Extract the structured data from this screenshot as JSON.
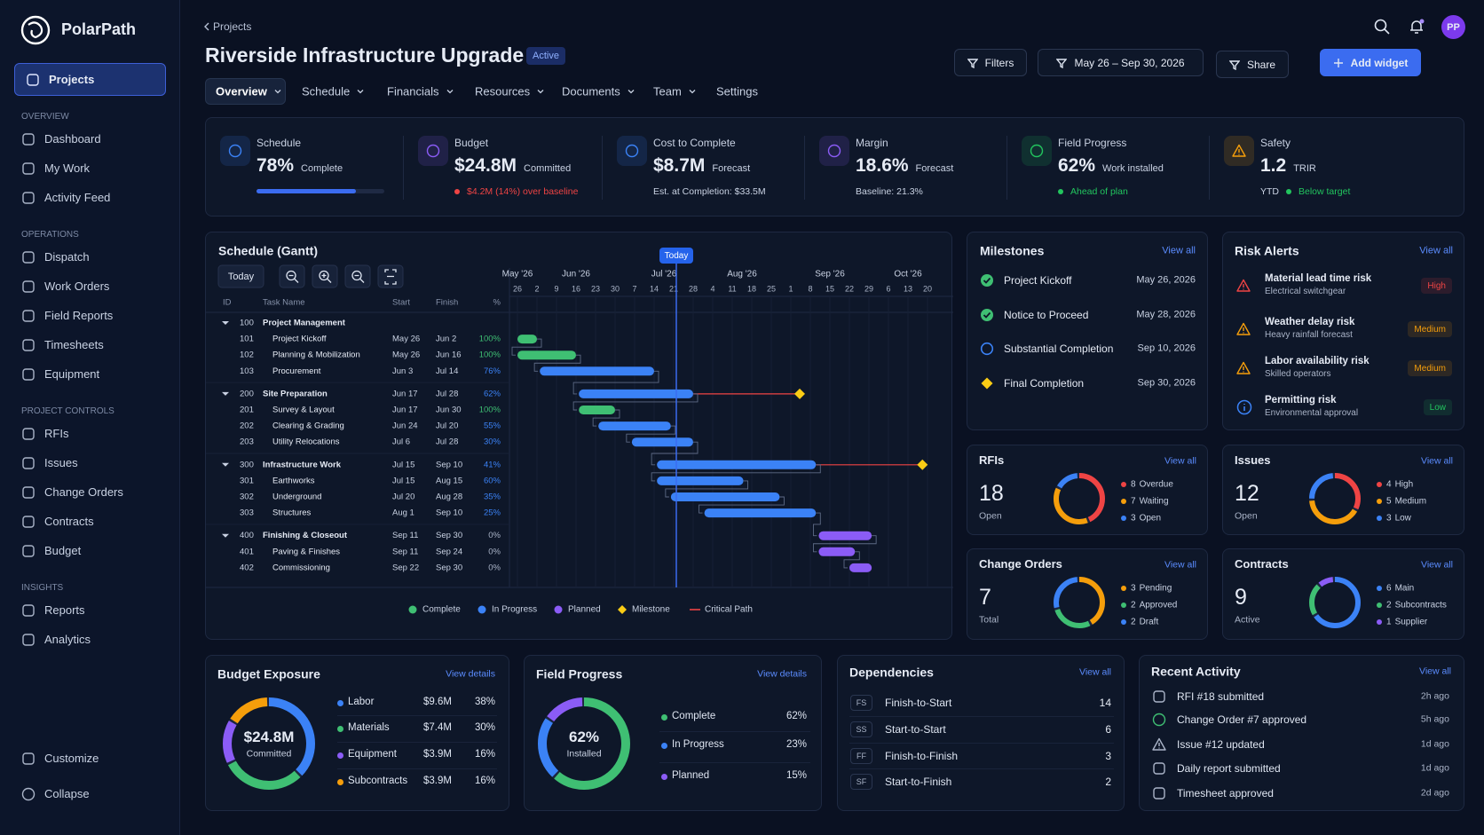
{
  "sidebar": {
    "brand": "PolarPath",
    "active": "Projects",
    "sections": [
      {
        "title": "OVERVIEW",
        "items": [
          "Dashboard",
          "My Work",
          "Activity Feed"
        ]
      },
      {
        "title": "OPERATIONS",
        "items": [
          "Dispatch",
          "Work Orders",
          "Field Reports",
          "Timesheets",
          "Equipment"
        ]
      },
      {
        "title": "PROJECT CONTROLS",
        "items": [
          "RFIs",
          "Issues",
          "Change Orders",
          "Contracts",
          "Budget"
        ]
      },
      {
        "title": "INSIGHTS",
        "items": [
          "Reports",
          "Analytics"
        ]
      }
    ],
    "footer": [
      "Customize",
      "Collapse"
    ]
  },
  "header": {
    "breadcrumb": "Projects",
    "title": "Riverside Infrastructure Upgrade",
    "status": "Active",
    "tabs": [
      "Overview",
      "Schedule",
      "Financials",
      "Resources",
      "Documents",
      "Team",
      "Settings"
    ],
    "filters": "Filters",
    "date_range": "May 26 – Sep 30, 2026",
    "share": "Share",
    "add_widget": "Add widget",
    "avatar": "PP"
  },
  "kpis": [
    {
      "label": "Schedule",
      "value": {
        "value": 78,
        "label": "78%"
      },
      "unit": "Complete"
    },
    {
      "label": "Budget",
      "value": "$24.8M",
      "unit": "Committed",
      "note": "$4.2M (14%) over baseline",
      "note_color": "#ef4444"
    },
    {
      "label": "Cost to Complete",
      "value": "$8.7M",
      "unit": "Forecast",
      "note": "Est. at Completion: $33.5M"
    },
    {
      "label": "Margin",
      "value": "18.6%",
      "unit": "Forecast",
      "note": "Baseline: 21.3%"
    },
    {
      "label": "Field Progress",
      "value": "62%",
      "unit": "Work installed",
      "note": "Ahead of plan",
      "note_color": "#22c55e"
    },
    {
      "label": "Safety",
      "value": "1.2",
      "unit": "TRIR",
      "note_prefix": "YTD",
      "note": "Below target",
      "note_color": "#22c55e"
    }
  ],
  "gantt": {
    "title": "Schedule (Gantt)",
    "today_button": "Today",
    "today_marker": "Today",
    "columns": [
      "ID",
      "Task Name",
      "Start",
      "Finish",
      "%"
    ],
    "months": [
      "May '26",
      "Jun '26",
      "Jul '26",
      "Aug '26",
      "Sep '26",
      "Oct '26"
    ],
    "weeks": [
      26,
      2,
      9,
      16,
      23,
      30,
      7,
      14,
      21,
      28,
      4,
      11,
      18,
      25,
      1,
      8,
      15,
      22,
      29,
      6,
      13,
      20
    ],
    "rows": [
      {
        "id": "100",
        "name": "Project Management",
        "start": null,
        "finish": null,
        "pct": null
      },
      {
        "id": "101",
        "name": "Project Kickoff",
        "start": "May 26",
        "finish": "Jun 2",
        "pct": {
          "value": 100,
          "label": "100%"
        }
      },
      {
        "id": "102",
        "name": "Planning & Mobilization",
        "start": "May 26",
        "finish": "Jun 16",
        "pct": {
          "value": 100,
          "label": "100%"
        }
      },
      {
        "id": "103",
        "name": "Procurement",
        "start": "Jun 3",
        "finish": "Jul 14",
        "pct": {
          "value": 76,
          "label": "76%"
        }
      },
      {
        "id": "200",
        "name": "Site Preparation",
        "start": "Jun 17",
        "finish": "Jul 28",
        "pct": {
          "value": 62,
          "label": "62%"
        }
      },
      {
        "id": "201",
        "name": "Survey & Layout",
        "start": "Jun 17",
        "finish": "Jun 30",
        "pct": {
          "value": 100,
          "label": "100%"
        }
      },
      {
        "id": "202",
        "name": "Clearing & Grading",
        "start": "Jun 24",
        "finish": "Jul 20",
        "pct": {
          "value": 55,
          "label": "55%"
        }
      },
      {
        "id": "203",
        "name": "Utility Relocations",
        "start": "Jul 6",
        "finish": "Jul 28",
        "pct": {
          "value": 30,
          "label": "30%"
        }
      },
      {
        "id": "300",
        "name": "Infrastructure Work",
        "start": "Jul 15",
        "finish": "Sep 10",
        "pct": {
          "value": 41,
          "label": "41%"
        }
      },
      {
        "id": "301",
        "name": "Earthworks",
        "start": "Jul 15",
        "finish": "Aug 15",
        "pct": {
          "value": 60,
          "label": "60%"
        }
      },
      {
        "id": "302",
        "name": "Underground",
        "start": "Jul 20",
        "finish": "Aug 28",
        "pct": {
          "value": 35,
          "label": "35%"
        }
      },
      {
        "id": "303",
        "name": "Structures",
        "start": "Aug 1",
        "finish": "Sep 10",
        "pct": {
          "value": 25,
          "label": "25%"
        }
      },
      {
        "id": "400",
        "name": "Finishing & Closeout",
        "start": "Sep 11",
        "finish": "Sep 30",
        "pct": {
          "value": 0,
          "label": "0%"
        }
      },
      {
        "id": "401",
        "name": "Paving & Finishes",
        "start": "Sep 11",
        "finish": "Sep 24",
        "pct": {
          "value": 0,
          "label": "0%"
        }
      },
      {
        "id": "402",
        "name": "Commissioning",
        "start": "Sep 22",
        "finish": "Sep 30",
        "pct": {
          "value": 0,
          "label": "0%"
        }
      }
    ],
    "legend": [
      {
        "name": "Complete",
        "color": "#3fbf73"
      },
      {
        "name": "In Progress",
        "color": "#3b82f6"
      },
      {
        "name": "Planned",
        "color": "#8b5cf6"
      },
      {
        "name": "Milestone",
        "color": "#facc15"
      },
      {
        "name": "Critical Path",
        "color": "#ef4444"
      }
    ]
  },
  "milestones": {
    "title": "Milestones",
    "view_all": "View all",
    "items": [
      {
        "name": "Project Kickoff",
        "date": "May 26, 2026"
      },
      {
        "name": "Notice to Proceed",
        "date": "May 28, 2026"
      },
      {
        "name": "Substantial Completion",
        "date": "Sep 10, 2026"
      },
      {
        "name": "Final Completion",
        "date": "Sep 30, 2026"
      }
    ]
  },
  "risks": {
    "title": "Risk Alerts",
    "view_all": "View all",
    "items": [
      {
        "title": "Material lead time risk",
        "subtitle": "Electrical switchgear",
        "level": "High",
        "color": "#ef4444"
      },
      {
        "title": "Weather delay risk",
        "subtitle": "Heavy rainfall forecast",
        "level": "Medium",
        "color": "#f59e0b"
      },
      {
        "title": "Labor availability risk",
        "subtitle": "Skilled operators",
        "level": "Medium",
        "color": "#f59e0b"
      },
      {
        "title": "Permitting risk",
        "subtitle": "Environmental approval",
        "level": "Low",
        "color": "#22c55e"
      }
    ]
  },
  "cards": [
    {
      "title": "RFIs",
      "view_all": "View all",
      "total": 18,
      "caption": "Open",
      "items": [
        {
          "count": 8,
          "label": "Overdue",
          "color": "#ef4444"
        },
        {
          "count": 7,
          "label": "Waiting",
          "color": "#f59e0b"
        },
        {
          "count": 3,
          "label": "Open",
          "color": "#3b82f6"
        }
      ]
    },
    {
      "title": "Issues",
      "view_all": "View all",
      "total": 12,
      "caption": "Open",
      "items": [
        {
          "count": 4,
          "label": "High",
          "color": "#ef4444"
        },
        {
          "count": 5,
          "label": "Medium",
          "color": "#f59e0b"
        },
        {
          "count": 3,
          "label": "Low",
          "color": "#3b82f6"
        }
      ]
    },
    {
      "title": "Change Orders",
      "view_all": "View all",
      "total": 7,
      "caption": "Total",
      "items": [
        {
          "count": 3,
          "label": "Pending",
          "color": "#f59e0b"
        },
        {
          "count": 2,
          "label": "Approved",
          "color": "#3fbf73"
        },
        {
          "count": 2,
          "label": "Draft",
          "color": "#3b82f6"
        }
      ]
    },
    {
      "title": "Contracts",
      "view_all": "View all",
      "total": 9,
      "caption": "Active",
      "items": [
        {
          "count": 6,
          "label": "Main",
          "color": "#3b82f6"
        },
        {
          "count": 2,
          "label": "Subcontracts",
          "color": "#3fbf73"
        },
        {
          "count": 1,
          "label": "Supplier",
          "color": "#8b5cf6"
        }
      ]
    }
  ],
  "budget": {
    "title": "Budget Exposure",
    "view_details": "View details",
    "center": "$24.8M",
    "caption": "Committed",
    "rows": [
      {
        "name": "Labor",
        "amount": "$9.6M",
        "pct": {
          "value": 38,
          "label": "38%"
        },
        "color": "#3b82f6"
      },
      {
        "name": "Materials",
        "amount": "$7.4M",
        "pct": {
          "value": 30,
          "label": "30%"
        },
        "color": "#3fbf73"
      },
      {
        "name": "Equipment",
        "amount": "$3.9M",
        "pct": {
          "value": 16,
          "label": "16%"
        },
        "color": "#8b5cf6"
      },
      {
        "name": "Subcontracts",
        "amount": "$3.9M",
        "pct": {
          "value": 16,
          "label": "16%"
        },
        "color": "#f59e0b"
      }
    ]
  },
  "field": {
    "title": "Field Progress",
    "view_details": "View details",
    "center": "62%",
    "caption": "Installed",
    "rows": [
      {
        "name": "Complete",
        "pct": {
          "value": 62,
          "label": "62%"
        },
        "color": "#3fbf73"
      },
      {
        "name": "In Progress",
        "pct": {
          "value": 23,
          "label": "23%"
        },
        "color": "#3b82f6"
      },
      {
        "name": "Planned",
        "pct": {
          "value": 15,
          "label": "15%"
        },
        "color": "#8b5cf6"
      }
    ]
  },
  "dependencies": {
    "title": "Dependencies",
    "view_all": "View all",
    "rows": [
      {
        "code": "FS",
        "name": "Finish-to-Start",
        "count": 14
      },
      {
        "code": "SS",
        "name": "Start-to-Start",
        "count": 6
      },
      {
        "code": "FF",
        "name": "Finish-to-Finish",
        "count": 3
      },
      {
        "code": "SF",
        "name": "Start-to-Finish",
        "count": 2
      }
    ]
  },
  "activity": {
    "title": "Recent Activity",
    "view_all": "View all",
    "rows": [
      {
        "text": "RFI #18 submitted",
        "time": "2h ago"
      },
      {
        "text": "Change Order #7 approved",
        "time": "5h ago"
      },
      {
        "text": "Issue #12 updated",
        "time": "1d ago"
      },
      {
        "text": "Daily report submitted",
        "time": "1d ago"
      },
      {
        "text": "Timesheet approved",
        "time": "2d ago"
      }
    ]
  }
}
